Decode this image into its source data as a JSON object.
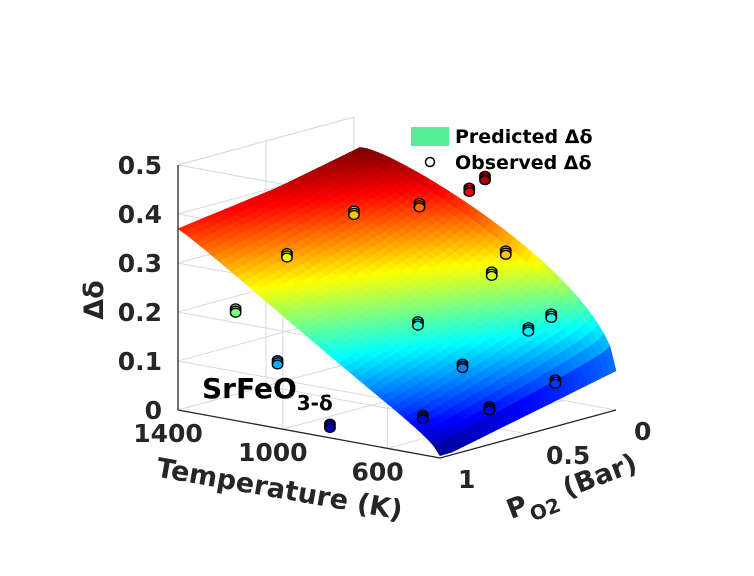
{
  "chart_data": {
    "type": "surface3d",
    "annotation": "SrFeO",
    "annotation_sub": "3-δ",
    "axes": {
      "x": {
        "label": "Temperature (K)",
        "ticks": [
          "1400",
          "1000",
          "600"
        ],
        "range": [
          400,
          1400
        ]
      },
      "y": {
        "label_main": "P",
        "label_sub": "O2",
        "label_suffix": " (Bar)",
        "ticks": [
          "0",
          "0.5",
          "1"
        ],
        "range": [
          0,
          1
        ]
      },
      "z": {
        "label": "Δδ",
        "ticks": [
          "0",
          "0.1",
          "0.2",
          "0.3",
          "0.4",
          "0.5"
        ],
        "range": [
          0,
          0.5
        ]
      }
    },
    "grid": true,
    "colormap": "jet",
    "legend": {
      "placement": "top-right",
      "entries": [
        {
          "label": "Predicted Δδ",
          "marker": "patch",
          "color": "#55ef9a"
        },
        {
          "label": "Observed Δδ",
          "marker": "circle",
          "color": "#000000"
        }
      ]
    },
    "observed_points": [
      {
        "T": 1400,
        "p": 0.0,
        "d": 0.3
      },
      {
        "T": 1150,
        "p": 0.0,
        "d": 0.34
      },
      {
        "T": 960,
        "p": 0.0,
        "d": 0.39
      },
      {
        "T": 900,
        "p": 0.0,
        "d": 0.42
      },
      {
        "T": 1320,
        "p": 0.5,
        "d": 0.27
      },
      {
        "T": 1180,
        "p": 1.0,
        "d": 0.22
      },
      {
        "T": 1020,
        "p": 1.0,
        "d": 0.13
      },
      {
        "T": 820,
        "p": 1.0,
        "d": 0.02
      },
      {
        "T": 820,
        "p": 0.5,
        "d": 0.18
      },
      {
        "T": 740,
        "p": 0.2,
        "d": 0.26
      },
      {
        "T": 720,
        "p": 0.15,
        "d": 0.3
      },
      {
        "T": 650,
        "p": 0.5,
        "d": 0.11
      },
      {
        "T": 600,
        "p": 0.2,
        "d": 0.16
      },
      {
        "T": 580,
        "p": 0.1,
        "d": 0.18
      },
      {
        "T": 600,
        "p": 0.8,
        "d": 0.04
      },
      {
        "T": 480,
        "p": 0.6,
        "d": 0.05
      },
      {
        "T": 430,
        "p": 0.3,
        "d": 0.08
      }
    ],
    "colors": {
      "axis": "#262626",
      "grid": "#d9d9d9",
      "marker_edge": "#000000"
    }
  }
}
